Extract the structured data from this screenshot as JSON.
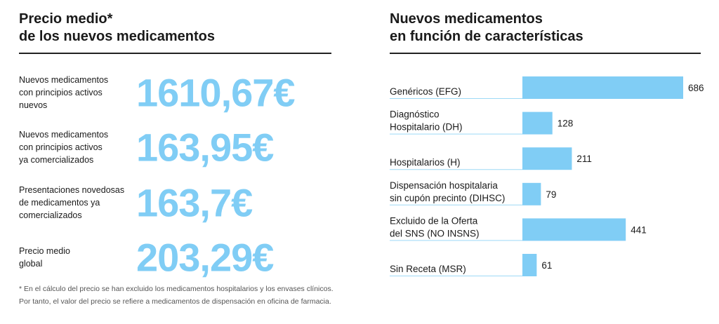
{
  "left_panel": {
    "title": [
      "Precio medio*",
      "de los nuevos medicamentos"
    ],
    "rows": [
      {
        "label": [
          "Nuevos medicamentos",
          "con principios activos",
          "nuevos"
        ],
        "value": "1610,67€"
      },
      {
        "label": [
          "Nuevos medicamentos",
          "con principios activos",
          "ya comercializados"
        ],
        "value": "163,95€"
      },
      {
        "label": [
          "Presentaciones novedosas",
          "de medicamentos ya",
          "comercializados"
        ],
        "value": "163,7€"
      },
      {
        "label": [
          "Precio medio",
          "global"
        ],
        "value": "203,29€"
      }
    ],
    "footnote": [
      "* En el cálculo del precio se han excluido los medicamentos hospitalarios y los envases clínicos.",
      "Por tanto, el valor del precio se refiere a medicamentos de dispensación en oficina de farmacia."
    ]
  },
  "right_panel": {
    "title": [
      "Nuevos medicamentos",
      "en función de características"
    ]
  },
  "colors": {
    "accent": "#80cdf5",
    "rule": "#222222",
    "divider": "#9ed9f6"
  },
  "chart_data": {
    "type": "bar",
    "orientation": "horizontal",
    "title": "Nuevos medicamentos en función de características",
    "categories": [
      [
        "Genéricos (EFG)"
      ],
      [
        "Diagnóstico",
        "Hospitalario (DH)"
      ],
      [
        "Hospitalarios (H)"
      ],
      [
        "Dispensación hospitalaria",
        "sin cupón precinto (DIHSC)"
      ],
      [
        "Excluido de la Oferta",
        "del SNS (NO INSNS)"
      ],
      [
        "Sin Receta (MSR)"
      ]
    ],
    "values": [
      686,
      128,
      211,
      79,
      441,
      61
    ],
    "xlim": [
      0,
      686
    ],
    "xlabel": "",
    "ylabel": "",
    "grid": false
  }
}
